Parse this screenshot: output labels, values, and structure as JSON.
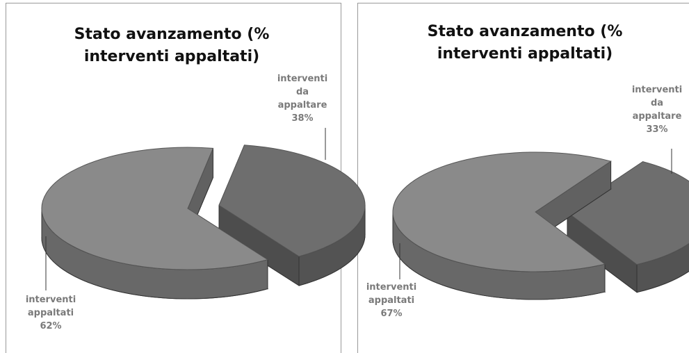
{
  "chart_data": [
    {
      "type": "pie",
      "title": "Stato avanzamento (% interventi appaltati)",
      "categories": [
        "interventi appaltati",
        "interventi da appaltare"
      ],
      "values": [
        62,
        38
      ],
      "value_labels": [
        "62%",
        "38%"
      ],
      "colors": [
        "#8a8a8a",
        "#6e6e6e"
      ]
    },
    {
      "type": "pie",
      "title": "Stato avanzamento (% interventi appaltati)",
      "categories": [
        "interventi appaltati",
        "interventi da appaltare"
      ],
      "values": [
        67,
        33
      ],
      "value_labels": [
        "67%",
        "33%"
      ],
      "colors": [
        "#8a8a8a",
        "#6e6e6e"
      ]
    }
  ]
}
